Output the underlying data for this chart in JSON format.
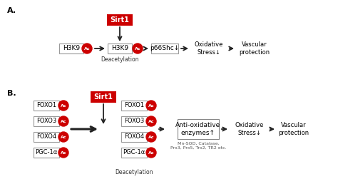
{
  "background": "#ffffff",
  "panel_a_label": "A.",
  "panel_b_label": "B.",
  "sirt1_color": "#cc0000",
  "sirt1_text": "Sirt1",
  "ac_color": "#cc0000",
  "ac_text": "Ac",
  "panel_a": {
    "h3k9_left": "H3K9",
    "h3k9_right": "H3K9",
    "deacetylation": "Deacetylation",
    "p66shc": "p66Shc↓",
    "oxidative_stress": "Oxidative\nStress↓",
    "vascular": "Vascular\nprotection"
  },
  "panel_b": {
    "left_boxes": [
      "FOXO1",
      "FOXO3",
      "FOXO4",
      "PGC-1α"
    ],
    "right_boxes": [
      "FOXO1",
      "FOXO3",
      "FOXO4",
      "PGC-1α"
    ],
    "deacetylation": "Deacetylation",
    "anti_oxidative": "Anti-oxidative\nenzymes↑",
    "subtitle": "Mn-SOD, Catalase,\nPrx3, Prx5, Trx2, TR2 etc.",
    "oxidative_stress": "Oxidative\nStress↓",
    "vascular": "Vascular\nprotection"
  }
}
